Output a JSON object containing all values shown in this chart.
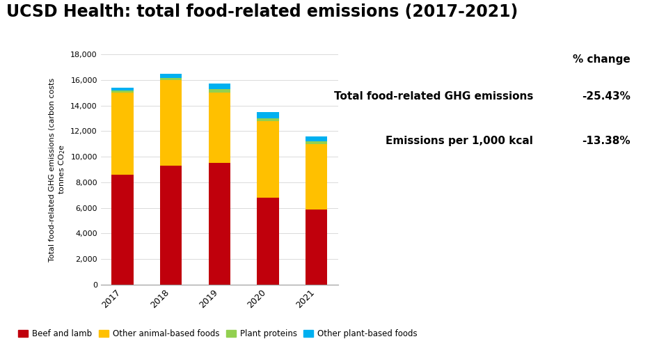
{
  "title": "UCSD Health: total food-related emissions (2017-2021)",
  "years": [
    "2017",
    "2018",
    "2019",
    "2020",
    "2021"
  ],
  "beef_lamb": [
    8600,
    9300,
    9500,
    6800,
    5900
  ],
  "other_animal": [
    6400,
    6700,
    5500,
    6000,
    5100
  ],
  "plant_proteins": [
    150,
    150,
    300,
    200,
    200
  ],
  "other_plant": [
    250,
    350,
    400,
    500,
    400
  ],
  "colors": {
    "beef_lamb": "#C0000C",
    "other_animal": "#FFC000",
    "plant_proteins": "#92D050",
    "other_plant": "#00B0F0"
  },
  "legend_labels": [
    "Beef and lamb",
    "Other animal-based foods",
    "Plant proteins",
    "Other plant-based foods"
  ],
  "ylim": [
    0,
    18000
  ],
  "yticks": [
    0,
    2000,
    4000,
    6000,
    8000,
    10000,
    12000,
    14000,
    16000,
    18000
  ],
  "stats_label1": "Total food-related GHG emissions",
  "stats_value1": "-25.43%",
  "stats_label2": "Emissions per 1,000 kcal",
  "stats_value2": "-13.38%",
  "pct_change_header": "% change",
  "background_color": "#FFFFFF"
}
